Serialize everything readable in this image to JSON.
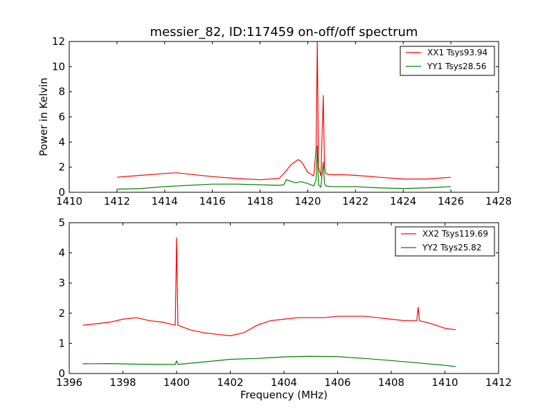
{
  "chart_data": [
    {
      "type": "line",
      "title": "messier_82, ID:117459 on-off/off spectrum",
      "xlabel": "",
      "ylabel": "Power in Kelvin",
      "xlim": [
        1410,
        1428
      ],
      "ylim": [
        0,
        12
      ],
      "xticks": [
        "1410",
        "1412",
        "1414",
        "1416",
        "1418",
        "1420",
        "1422",
        "1424",
        "1426",
        "1428"
      ],
      "yticks": [
        "0",
        "2",
        "4",
        "6",
        "8",
        "10",
        "12"
      ],
      "legend_position": "top-right",
      "series": [
        {
          "name": "XX1 Tsys93.94",
          "color": "#ff0000",
          "x": [
            1412.0,
            1413.0,
            1414.0,
            1414.5,
            1415.0,
            1416.0,
            1417.0,
            1418.0,
            1418.8,
            1419.0,
            1419.3,
            1419.6,
            1419.75,
            1420.0,
            1420.25,
            1420.35,
            1420.4,
            1420.45,
            1420.55,
            1420.65,
            1420.7,
            1420.75,
            1420.9,
            1421.5,
            1422.0,
            1423.0,
            1424.0,
            1425.0,
            1426.0
          ],
          "y": [
            1.2,
            1.35,
            1.5,
            1.55,
            1.45,
            1.25,
            1.1,
            1.0,
            1.1,
            1.5,
            2.2,
            2.6,
            2.4,
            1.6,
            1.3,
            3.5,
            12.0,
            2.0,
            1.3,
            7.7,
            2.0,
            1.5,
            1.4,
            1.4,
            1.35,
            1.2,
            1.05,
            1.05,
            1.2
          ]
        },
        {
          "name": "YY1 Tsys28.56",
          "color": "#008000",
          "x": [
            1412.0,
            1413.0,
            1414.0,
            1415.0,
            1416.0,
            1417.0,
            1418.0,
            1418.8,
            1419.0,
            1419.1,
            1419.5,
            1419.7,
            1420.0,
            1420.25,
            1420.35,
            1420.4,
            1420.45,
            1420.55,
            1420.65,
            1420.7,
            1420.75,
            1421.0,
            1422.0,
            1423.0,
            1424.0,
            1425.0,
            1426.0
          ],
          "y": [
            0.25,
            0.3,
            0.45,
            0.55,
            0.65,
            0.65,
            0.6,
            0.55,
            0.6,
            1.0,
            0.75,
            0.85,
            0.7,
            0.5,
            1.0,
            3.7,
            0.6,
            0.4,
            2.4,
            0.7,
            0.5,
            0.45,
            0.45,
            0.35,
            0.3,
            0.35,
            0.45
          ]
        }
      ]
    },
    {
      "type": "line",
      "title": "",
      "xlabel": "Frequency (MHz)",
      "ylabel": "",
      "xlim": [
        1396,
        1412
      ],
      "ylim": [
        0,
        5
      ],
      "xticks": [
        "1396",
        "1398",
        "1400",
        "1402",
        "1404",
        "1406",
        "1408",
        "1410",
        "1412"
      ],
      "yticks": [
        "0",
        "1",
        "2",
        "3",
        "4",
        "5"
      ],
      "legend_position": "top-right",
      "series": [
        {
          "name": "XX2 Tsys119.69",
          "color": "#ff0000",
          "x": [
            1396.5,
            1397.0,
            1397.5,
            1398.0,
            1398.5,
            1399.0,
            1399.5,
            1399.95,
            1400.0,
            1400.05,
            1400.5,
            1401.0,
            1401.5,
            1402.0,
            1402.5,
            1403.0,
            1403.5,
            1404.0,
            1404.5,
            1405.0,
            1405.5,
            1406.0,
            1406.5,
            1407.0,
            1407.5,
            1408.0,
            1408.5,
            1408.95,
            1409.0,
            1409.05,
            1409.5,
            1410.0,
            1410.4
          ],
          "y": [
            1.6,
            1.65,
            1.7,
            1.8,
            1.85,
            1.75,
            1.7,
            1.6,
            4.5,
            1.6,
            1.45,
            1.35,
            1.3,
            1.25,
            1.35,
            1.6,
            1.75,
            1.8,
            1.85,
            1.85,
            1.85,
            1.9,
            1.9,
            1.9,
            1.85,
            1.8,
            1.75,
            1.75,
            2.2,
            1.75,
            1.65,
            1.5,
            1.45
          ]
        },
        {
          "name": "YY2 Tsys25.82",
          "color": "#008000",
          "x": [
            1396.5,
            1397.5,
            1398.5,
            1399.5,
            1399.95,
            1400.0,
            1400.05,
            1401.0,
            1402.0,
            1403.0,
            1404.0,
            1405.0,
            1406.0,
            1407.0,
            1408.0,
            1409.0,
            1410.0,
            1410.4
          ],
          "y": [
            0.32,
            0.33,
            0.31,
            0.3,
            0.3,
            0.42,
            0.3,
            0.38,
            0.47,
            0.5,
            0.55,
            0.57,
            0.56,
            0.5,
            0.43,
            0.35,
            0.27,
            0.23
          ]
        }
      ]
    }
  ]
}
